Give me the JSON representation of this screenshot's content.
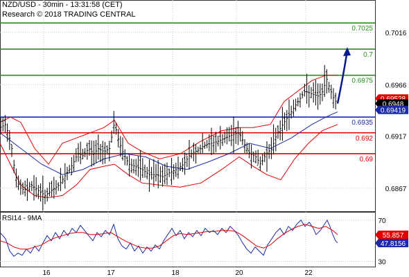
{
  "header": {
    "line1": "NZD/USD - 30min - 13:31:58 (CET)",
    "line2": "Research © 2018 TRADING CENTRAL"
  },
  "chart_data": [
    {
      "type": "candlestick",
      "title": "NZD/USD - 30min - 13:31:58 (CET)",
      "ylim": [
        0.6845,
        0.7047
      ],
      "y_ticks": [
        0.7016,
        0.6966,
        0.6917,
        0.6867
      ],
      "x_ticks": [
        "16",
        "17",
        "18",
        "20",
        "22"
      ],
      "grid": true,
      "last_price": 0.6948,
      "price_tags": [
        {
          "value": 0.69528,
          "color": "#e00000"
        },
        {
          "value": 0.6948,
          "color": "#000000"
        },
        {
          "value": 0.69419,
          "color": "#1a2aa8"
        }
      ],
      "levels": [
        {
          "value": 0.7025,
          "label": "0.7025",
          "color": "#2e8b22"
        },
        {
          "value": 0.7,
          "label": "0.7",
          "color": "#2e8b22"
        },
        {
          "value": 0.6975,
          "label": "0.6975",
          "color": "#2e8b22"
        },
        {
          "value": 0.6935,
          "label": "0.6935",
          "color": "#1a2aa8"
        },
        {
          "value": 0.692,
          "label": "0.692",
          "color": "#e00000"
        },
        {
          "value": 0.69,
          "label": "0.69",
          "color": "#e00000"
        }
      ],
      "price_path": [
        [
          0,
          0.6925
        ],
        [
          8,
          0.6928
        ],
        [
          16,
          0.691
        ],
        [
          22,
          0.688
        ],
        [
          28,
          0.6868
        ],
        [
          35,
          0.6865
        ],
        [
          45,
          0.687
        ],
        [
          55,
          0.6865
        ],
        [
          65,
          0.686
        ],
        [
          75,
          0.6865
        ],
        [
          85,
          0.687
        ],
        [
          95,
          0.688
        ],
        [
          105,
          0.689
        ],
        [
          112,
          0.69
        ],
        [
          120,
          0.6898
        ],
        [
          128,
          0.6905
        ],
        [
          135,
          0.69
        ],
        [
          142,
          0.6905
        ],
        [
          150,
          0.6902
        ],
        [
          158,
          0.6905
        ],
        [
          165,
          0.693
        ],
        [
          170,
          0.6915
        ],
        [
          178,
          0.69
        ],
        [
          186,
          0.689
        ],
        [
          194,
          0.6888
        ],
        [
          205,
          0.6885
        ],
        [
          215,
          0.688
        ],
        [
          225,
          0.688
        ],
        [
          235,
          0.6878
        ],
        [
          245,
          0.6882
        ],
        [
          255,
          0.6885
        ],
        [
          265,
          0.689
        ],
        [
          275,
          0.69
        ],
        [
          285,
          0.6903
        ],
        [
          295,
          0.6908
        ],
        [
          305,
          0.691
        ],
        [
          315,
          0.6912
        ],
        [
          325,
          0.6915
        ],
        [
          335,
          0.6918
        ],
        [
          345,
          0.692
        ],
        [
          352,
          0.691
        ],
        [
          360,
          0.69
        ],
        [
          368,
          0.6898
        ],
        [
          376,
          0.689
        ],
        [
          384,
          0.69
        ],
        [
          392,
          0.6905
        ],
        [
          400,
          0.692
        ],
        [
          410,
          0.693
        ],
        [
          420,
          0.694
        ],
        [
          430,
          0.695
        ],
        [
          440,
          0.696
        ],
        [
          450,
          0.6957
        ],
        [
          460,
          0.6955
        ],
        [
          466,
          0.696
        ],
        [
          471,
          0.6972
        ],
        [
          476,
          0.6962
        ],
        [
          482,
          0.6952
        ],
        [
          487,
          0.6948
        ]
      ],
      "forecast_arrow": {
        "from": [
          487,
          0.6948
        ],
        "to": [
          500,
          0.7
        ]
      },
      "moving_average": [
        [
          0,
          0.692
        ],
        [
          30,
          0.6905
        ],
        [
          60,
          0.689
        ],
        [
          90,
          0.688
        ],
        [
          120,
          0.6885
        ],
        [
          150,
          0.6895
        ],
        [
          180,
          0.69
        ],
        [
          210,
          0.6897
        ],
        [
          240,
          0.6888
        ],
        [
          270,
          0.6885
        ],
        [
          300,
          0.6892
        ],
        [
          330,
          0.69
        ],
        [
          360,
          0.691
        ],
        [
          390,
          0.6905
        ],
        [
          420,
          0.6915
        ],
        [
          450,
          0.6928
        ],
        [
          470,
          0.6935
        ],
        [
          487,
          0.694
        ]
      ],
      "bollinger_upper": [
        [
          0,
          0.693
        ],
        [
          15,
          0.6935
        ],
        [
          30,
          0.693
        ],
        [
          50,
          0.6905
        ],
        [
          70,
          0.689
        ],
        [
          90,
          0.691
        ],
        [
          110,
          0.6915
        ],
        [
          130,
          0.692
        ],
        [
          150,
          0.6925
        ],
        [
          165,
          0.6932
        ],
        [
          185,
          0.691
        ],
        [
          205,
          0.6902
        ],
        [
          230,
          0.6895
        ],
        [
          260,
          0.69
        ],
        [
          290,
          0.6912
        ],
        [
          320,
          0.6922
        ],
        [
          345,
          0.6925
        ],
        [
          365,
          0.6925
        ],
        [
          390,
          0.6928
        ],
        [
          410,
          0.695
        ],
        [
          430,
          0.696
        ],
        [
          450,
          0.697
        ],
        [
          470,
          0.6975
        ],
        [
          487,
          0.6975
        ]
      ],
      "bollinger_lower": [
        [
          0,
          0.691
        ],
        [
          15,
          0.689
        ],
        [
          30,
          0.687
        ],
        [
          50,
          0.686
        ],
        [
          70,
          0.6858
        ],
        [
          90,
          0.686
        ],
        [
          110,
          0.687
        ],
        [
          130,
          0.6885
        ],
        [
          150,
          0.6888
        ],
        [
          165,
          0.689
        ],
        [
          185,
          0.688
        ],
        [
          205,
          0.6872
        ],
        [
          230,
          0.687
        ],
        [
          260,
          0.6868
        ],
        [
          290,
          0.6872
        ],
        [
          320,
          0.6885
        ],
        [
          345,
          0.6897
        ],
        [
          365,
          0.6888
        ],
        [
          385,
          0.688
        ],
        [
          405,
          0.6875
        ],
        [
          425,
          0.6895
        ],
        [
          445,
          0.691
        ],
        [
          465,
          0.6922
        ],
        [
          487,
          0.6928
        ]
      ]
    },
    {
      "type": "line",
      "title": "RSI14 - 9MA",
      "ylim": [
        25,
        78
      ],
      "y_ticks": [
        70,
        30
      ],
      "value_tags": [
        {
          "value": 55.857,
          "label": "55.857",
          "color": "#e00000"
        },
        {
          "value": 47.8156,
          "label": "47.8156",
          "color": "#1a2aa8"
        }
      ],
      "series": [
        {
          "color": "#1a2aa8",
          "values": [
            [
              0,
              58
            ],
            [
              8,
              52
            ],
            [
              14,
              40
            ],
            [
              20,
              35
            ],
            [
              26,
              38
            ],
            [
              32,
              36
            ],
            [
              38,
              42
            ],
            [
              44,
              38
            ],
            [
              50,
              45
            ],
            [
              56,
              40
            ],
            [
              62,
              48
            ],
            [
              68,
              55
            ],
            [
              74,
              50
            ],
            [
              80,
              58
            ],
            [
              86,
              52
            ],
            [
              92,
              60
            ],
            [
              98,
              55
            ],
            [
              104,
              62
            ],
            [
              110,
              58
            ],
            [
              116,
              65
            ],
            [
              122,
              60
            ],
            [
              128,
              55
            ],
            [
              134,
              50
            ],
            [
              140,
              58
            ],
            [
              146,
              54
            ],
            [
              152,
              60
            ],
            [
              158,
              56
            ],
            [
              164,
              66
            ],
            [
              170,
              52
            ],
            [
              176,
              45
            ],
            [
              182,
              42
            ],
            [
              188,
              48
            ],
            [
              194,
              40
            ],
            [
              200,
              45
            ],
            [
              206,
              38
            ],
            [
              212,
              44
            ],
            [
              218,
              40
            ],
            [
              224,
              46
            ],
            [
              230,
              42
            ],
            [
              236,
              50
            ],
            [
              242,
              56
            ],
            [
              248,
              62
            ],
            [
              254,
              55
            ],
            [
              260,
              60
            ],
            [
              266,
              52
            ],
            [
              272,
              58
            ],
            [
              278,
              54
            ],
            [
              284,
              60
            ],
            [
              290,
              55
            ],
            [
              296,
              62
            ],
            [
              302,
              58
            ],
            [
              308,
              60
            ],
            [
              314,
              56
            ],
            [
              320,
              62
            ],
            [
              326,
              58
            ],
            [
              332,
              64
            ],
            [
              338,
              60
            ],
            [
              344,
              55
            ],
            [
              350,
              48
            ],
            [
              356,
              42
            ],
            [
              362,
              38
            ],
            [
              368,
              44
            ],
            [
              374,
              40
            ],
            [
              380,
              36
            ],
            [
              386,
              46
            ],
            [
              392,
              52
            ],
            [
              398,
              58
            ],
            [
              404,
              62
            ],
            [
              410,
              56
            ],
            [
              416,
              64
            ],
            [
              422,
              60
            ],
            [
              428,
              66
            ],
            [
              434,
              70
            ],
            [
              440,
              64
            ],
            [
              446,
              68
            ],
            [
              452,
              62
            ],
            [
              456,
              56
            ],
            [
              462,
              60
            ],
            [
              468,
              66
            ],
            [
              472,
              70
            ],
            [
              476,
              64
            ],
            [
              480,
              56
            ],
            [
              484,
              50
            ],
            [
              487,
              48
            ]
          ]
        },
        {
          "color": "#e00000",
          "values": [
            [
              0,
              50
            ],
            [
              10,
              48
            ],
            [
              20,
              44
            ],
            [
              30,
              42
            ],
            [
              40,
              42
            ],
            [
              50,
              44
            ],
            [
              60,
              46
            ],
            [
              70,
              50
            ],
            [
              80,
              53
            ],
            [
              90,
              55
            ],
            [
              100,
              57
            ],
            [
              110,
              58
            ],
            [
              120,
              58
            ],
            [
              130,
              56
            ],
            [
              140,
              56
            ],
            [
              150,
              57
            ],
            [
              160,
              58
            ],
            [
              170,
              54
            ],
            [
              180,
              50
            ],
            [
              190,
              47
            ],
            [
              200,
              44
            ],
            [
              210,
              43
            ],
            [
              220,
              43
            ],
            [
              230,
              45
            ],
            [
              240,
              50
            ],
            [
              250,
              55
            ],
            [
              260,
              57
            ],
            [
              270,
              56
            ],
            [
              280,
              57
            ],
            [
              290,
              58
            ],
            [
              300,
              59
            ],
            [
              310,
              59
            ],
            [
              320,
              60
            ],
            [
              330,
              60
            ],
            [
              340,
              59
            ],
            [
              350,
              55
            ],
            [
              360,
              50
            ],
            [
              370,
              45
            ],
            [
              380,
              43
            ],
            [
              390,
              46
            ],
            [
              400,
              52
            ],
            [
              410,
              57
            ],
            [
              420,
              61
            ],
            [
              430,
              64
            ],
            [
              440,
              66
            ],
            [
              450,
              64
            ],
            [
              460,
              62
            ],
            [
              470,
              64
            ],
            [
              480,
              60
            ],
            [
              487,
              56
            ]
          ]
        }
      ]
    }
  ]
}
